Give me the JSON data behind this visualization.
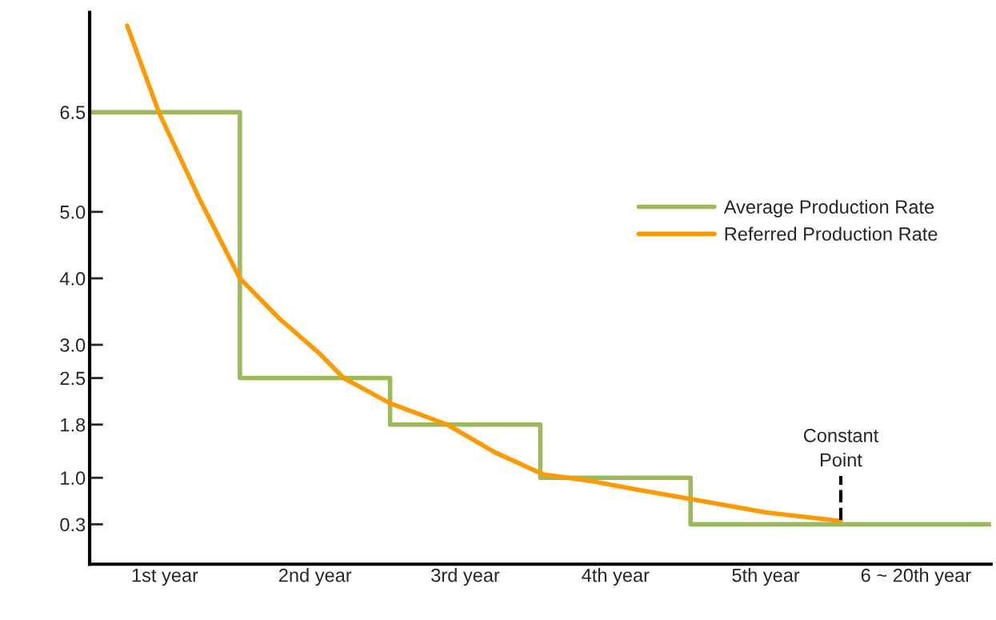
{
  "chart_data": {
    "type": "step",
    "xlim": [
      0,
      6
    ],
    "xticks": [
      {
        "value": 0.5,
        "label": "1st year"
      },
      {
        "value": 1.5,
        "label": "2nd year"
      },
      {
        "value": 2.5,
        "label": "3rd year"
      },
      {
        "value": 3.5,
        "label": "4th year"
      },
      {
        "value": 4.5,
        "label": "5th year"
      },
      {
        "value": 5.5,
        "label": "6 ~ 20th year"
      }
    ],
    "ylim": [
      -0.3,
      8
    ],
    "yticks": [
      0.3,
      {
        "value": 1,
        "label": "1.0"
      },
      1.8,
      2.5,
      {
        "value": 3,
        "label": "3.0"
      },
      {
        "value": 4,
        "label": "4.0"
      },
      {
        "value": 5,
        "label": "5.0"
      },
      6.5
    ],
    "series": [
      {
        "name": "Average Production Rate",
        "color": "#9bbb59",
        "x": [
          0,
          1,
          2,
          3,
          4,
          5,
          6
        ],
        "values": [
          6.5,
          2.5,
          1.8,
          1.0,
          0.3,
          0.3,
          0.3
        ]
      },
      {
        "name": "Referred Production Rate",
        "type": "line",
        "color": "#ff9900",
        "x": [
          0.25,
          0.46,
          0.73,
          1.0,
          1.26,
          1.53,
          1.69,
          2.0,
          2.38,
          2.7,
          3.02,
          3.34,
          3.65,
          4.0,
          4.5,
          5.0
        ],
        "values": [
          7.8,
          6.5,
          5.2,
          4.0,
          3.4,
          2.87,
          2.5,
          2.12,
          1.8,
          1.38,
          1.05,
          0.95,
          0.82,
          0.68,
          0.48,
          0.35
        ]
      }
    ],
    "ref_lines": [
      {
        "axis": "x",
        "value": 5,
        "label": "Constant Point",
        "line_style": "dashed",
        "color": "#000000"
      }
    ],
    "legend": "right",
    "grid": false
  }
}
